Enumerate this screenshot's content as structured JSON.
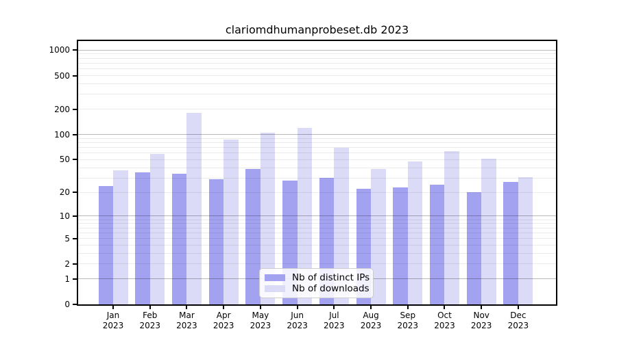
{
  "title": "clariomdhumanprobeset.db 2023",
  "chart_data": {
    "type": "bar",
    "title": "clariomdhumanprobeset.db 2023",
    "categories": [
      "Jan 2023",
      "Feb 2023",
      "Mar 2023",
      "Apr 2023",
      "May 2023",
      "Jun 2023",
      "Jul 2023",
      "Aug 2023",
      "Sep 2023",
      "Oct 2023",
      "Nov 2023",
      "Dec 2023"
    ],
    "x_tick_month": [
      "Jan",
      "Feb",
      "Mar",
      "Apr",
      "May",
      "Jun",
      "Jul",
      "Aug",
      "Sep",
      "Oct",
      "Nov",
      "Dec"
    ],
    "x_tick_year": "2023",
    "series": [
      {
        "name": "Nb of distinct IPs",
        "color": "#a2a2f0",
        "values": [
          24,
          35,
          34,
          29,
          39,
          28,
          30,
          22,
          23,
          25,
          20,
          27
        ]
      },
      {
        "name": "Nb of downloads",
        "color": "#dbdbf8",
        "values": [
          37,
          59,
          180,
          88,
          106,
          120,
          70,
          39,
          48,
          63,
          51,
          31
        ]
      }
    ],
    "yscale": "log1p",
    "ylim": [
      0,
      1280
    ],
    "yticks": [
      0,
      1,
      2,
      5,
      10,
      20,
      50,
      100,
      200,
      500,
      1000
    ],
    "minor_grid_values": [
      3,
      4,
      6,
      7,
      8,
      9,
      30,
      40,
      60,
      70,
      80,
      90,
      300,
      400,
      600,
      700,
      800,
      900
    ],
    "major_grid_values": [
      1,
      10,
      100,
      1000
    ],
    "grid": true,
    "legend_position": "inside-bottom-center",
    "xlabel": "",
    "ylabel": ""
  },
  "colors": {
    "background": "#ffffff",
    "bar_ips": "#a2a2f0",
    "bar_downloads": "#dbdbf8",
    "grid_minor": "rgba(0,0,0,0.08)",
    "grid_major": "rgba(0,0,0,0.28)",
    "axis": "#000000",
    "legend_border": "#cccccc"
  }
}
